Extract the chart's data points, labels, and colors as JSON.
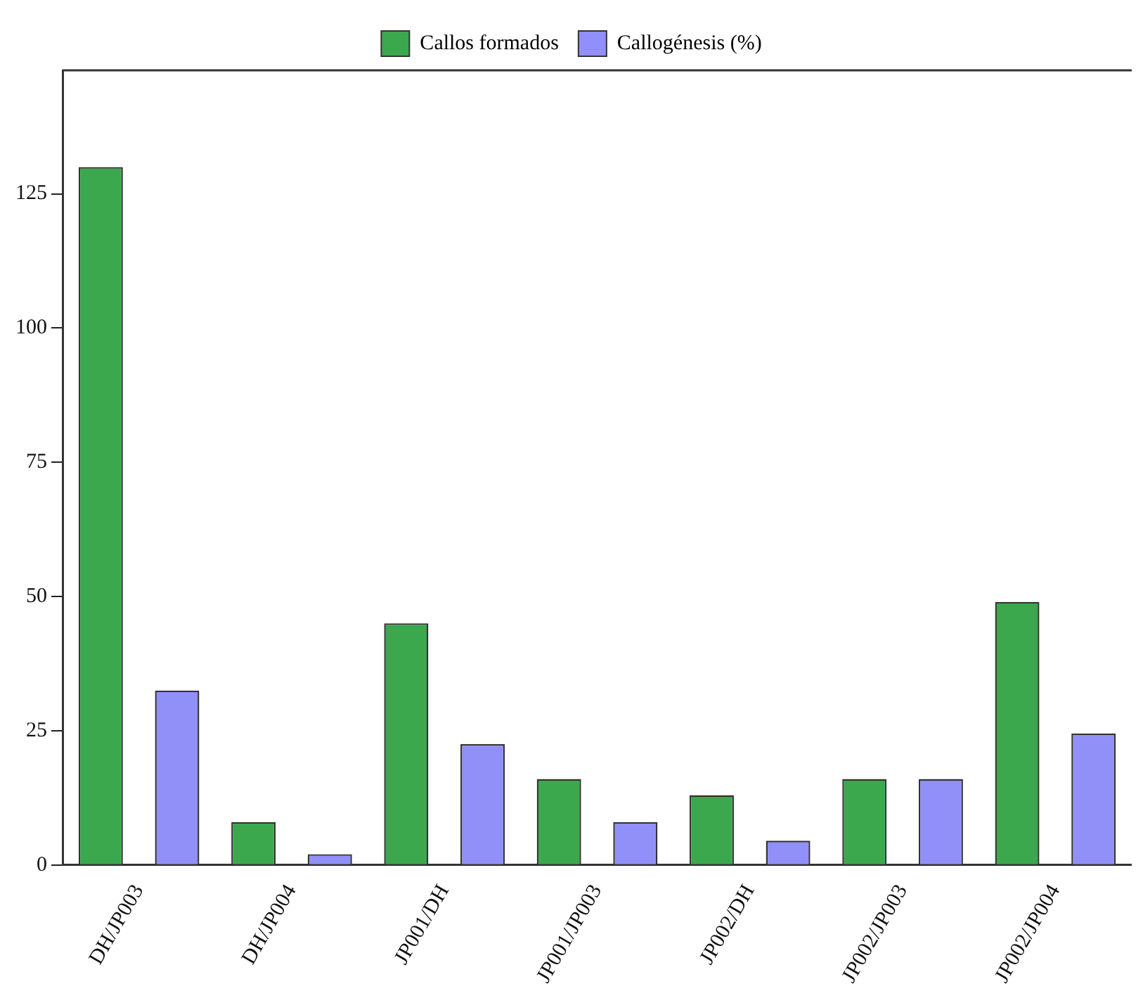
{
  "chart_data": {
    "type": "bar",
    "categories": [
      "DH/JP003",
      "DH/JP004",
      "JP001/DH",
      "JP001/JP003",
      "JP002/DH",
      "JP002/JP003",
      "JP002/JP004"
    ],
    "series": [
      {
        "name": "Callos formados",
        "color": "#3ba84d",
        "values": [
          130,
          8,
          45,
          16,
          13,
          16,
          49
        ]
      },
      {
        "name": "Callogénesis (%)",
        "color": "#9090f8",
        "values": [
          32.5,
          2,
          22.5,
          8,
          4.5,
          16,
          24.5
        ]
      }
    ],
    "ylim": [
      0,
      148
    ],
    "yticks": [
      0,
      25,
      50,
      75,
      100,
      125
    ],
    "grid": false,
    "legend": "top"
  }
}
